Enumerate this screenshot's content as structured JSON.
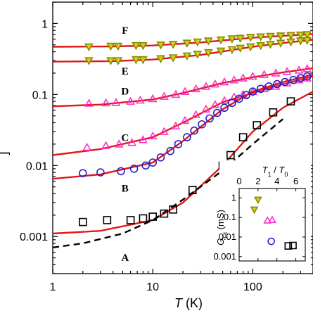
{
  "chart_data": [
    {
      "type": "scatter",
      "xlabel": "T (K)",
      "xscale": "log",
      "yscale": "log",
      "xlim": [
        1,
        400
      ],
      "ylim": [
        0.0003,
        2.0
      ],
      "x_ticks": [
        1,
        10,
        100
      ],
      "x_tick_labels": [
        "1",
        "10",
        "100"
      ],
      "y_ticks": [
        0.001,
        0.01,
        0.1,
        1
      ],
      "y_tick_labels": [
        "0.001",
        "0.01",
        "0.1",
        "1"
      ],
      "ylabel_partial": "]",
      "fit_color": "#e01818",
      "series": [
        {
          "name": "F",
          "label_pos": [
            2.0,
            0.72
          ],
          "marker": "triangle-down",
          "color": "#8a8a00",
          "fill": "#d0d020",
          "points": [
            [
              2.3,
              0.47
            ],
            [
              3.8,
              0.48
            ],
            [
              4.5,
              0.48
            ],
            [
              6.8,
              0.49
            ],
            [
              8.0,
              0.49
            ],
            [
              12,
              0.5
            ],
            [
              16,
              0.51
            ],
            [
              22,
              0.53
            ],
            [
              28,
              0.55
            ],
            [
              36,
              0.57
            ],
            [
              48,
              0.59
            ],
            [
              62,
              0.61
            ],
            [
              75,
              0.62
            ],
            [
              95,
              0.64
            ],
            [
              120,
              0.65
            ],
            [
              150,
              0.66
            ],
            [
              190,
              0.67
            ],
            [
              240,
              0.68
            ],
            [
              300,
              0.69
            ],
            [
              350,
              0.7
            ]
          ],
          "fit": [
            [
              1,
              0.47
            ],
            [
              4,
              0.475
            ],
            [
              10,
              0.49
            ],
            [
              30,
              0.54
            ],
            [
              100,
              0.63
            ],
            [
              200,
              0.67
            ],
            [
              400,
              0.71
            ]
          ]
        },
        {
          "name": "E",
          "label_pos": [
            2.0,
            0.19
          ],
          "marker": "triangle-down",
          "color": "#8a8a00",
          "fill": "#d0d020",
          "points": [
            [
              2.3,
              0.3
            ],
            [
              3.8,
              0.3
            ],
            [
              4.5,
              0.3
            ],
            [
              6.8,
              0.31
            ],
            [
              8.0,
              0.31
            ],
            [
              12,
              0.32
            ],
            [
              16,
              0.33
            ],
            [
              22,
              0.35
            ],
            [
              28,
              0.37
            ],
            [
              36,
              0.39
            ],
            [
              48,
              0.41
            ],
            [
              62,
              0.43
            ],
            [
              75,
              0.45
            ],
            [
              95,
              0.47
            ],
            [
              120,
              0.49
            ],
            [
              150,
              0.51
            ],
            [
              190,
              0.53
            ],
            [
              240,
              0.55
            ],
            [
              300,
              0.57
            ],
            [
              350,
              0.58
            ]
          ],
          "fit": [
            [
              1,
              0.29
            ],
            [
              4,
              0.295
            ],
            [
              10,
              0.31
            ],
            [
              30,
              0.36
            ],
            [
              100,
              0.47
            ],
            [
              200,
              0.53
            ],
            [
              400,
              0.59
            ]
          ]
        },
        {
          "name": "D",
          "label_pos": [
            2.0,
            0.1
          ],
          "marker": "triangle-up",
          "color": "#ff33cc",
          "fill": "none",
          "points": [
            [
              2.3,
              0.075
            ],
            [
              3.4,
              0.076
            ],
            [
              4.3,
              0.077
            ],
            [
              6.0,
              0.08
            ],
            [
              7.5,
              0.083
            ],
            [
              10,
              0.087
            ],
            [
              13,
              0.094
            ],
            [
              17,
              0.1
            ],
            [
              21,
              0.11
            ],
            [
              27,
              0.12
            ],
            [
              34,
              0.13
            ],
            [
              42,
              0.14
            ],
            [
              52,
              0.15
            ],
            [
              65,
              0.16
            ],
            [
              80,
              0.17
            ],
            [
              100,
              0.18
            ],
            [
              130,
              0.19
            ],
            [
              170,
              0.2
            ],
            [
              220,
              0.21
            ],
            [
              290,
              0.22
            ],
            [
              350,
              0.23
            ]
          ],
          "fit": [
            [
              1,
              0.068
            ],
            [
              3,
              0.072
            ],
            [
              10,
              0.085
            ],
            [
              20,
              0.105
            ],
            [
              50,
              0.145
            ],
            [
              100,
              0.175
            ],
            [
              200,
              0.205
            ],
            [
              400,
              0.235
            ]
          ]
        },
        {
          "name": "C",
          "label_pos": [
            2.0,
            0.022
          ],
          "marker": "triangle-up",
          "color": "#ff33cc",
          "fill": "none",
          "points": [
            [
              2.2,
              0.018
            ],
            [
              3.4,
              0.019
            ],
            [
              4.6,
              0.02
            ],
            [
              6.2,
              0.021
            ],
            [
              8.0,
              0.023
            ],
            [
              10,
              0.026
            ],
            [
              13,
              0.03
            ],
            [
              17,
              0.036
            ],
            [
              21,
              0.043
            ],
            [
              27,
              0.052
            ],
            [
              34,
              0.062
            ],
            [
              42,
              0.072
            ],
            [
              52,
              0.082
            ],
            [
              65,
              0.092
            ],
            [
              80,
              0.1
            ],
            [
              100,
              0.11
            ],
            [
              130,
              0.12
            ],
            [
              170,
              0.13
            ],
            [
              220,
              0.145
            ],
            [
              290,
              0.16
            ],
            [
              350,
              0.17
            ]
          ],
          "fit": [
            [
              1,
              0.014
            ],
            [
              3,
              0.017
            ],
            [
              10,
              0.025
            ],
            [
              20,
              0.04
            ],
            [
              50,
              0.078
            ],
            [
              100,
              0.105
            ],
            [
              200,
              0.14
            ],
            [
              400,
              0.18
            ]
          ]
        },
        {
          "name": "B",
          "label_pos": [
            2.0,
            0.0043
          ],
          "marker": "circle",
          "color": "#2222cc",
          "fill": "none",
          "points": [
            [
              2.0,
              0.0078
            ],
            [
              3.0,
              0.008
            ],
            [
              4.8,
              0.0083
            ],
            [
              6.5,
              0.009
            ],
            [
              8.5,
              0.01
            ],
            [
              10,
              0.011
            ],
            [
              12,
              0.013
            ],
            [
              15,
              0.016
            ],
            [
              18,
              0.02
            ],
            [
              22,
              0.025
            ],
            [
              26,
              0.031
            ],
            [
              31,
              0.038
            ],
            [
              37,
              0.046
            ],
            [
              44,
              0.055
            ],
            [
              52,
              0.065
            ],
            [
              62,
              0.076
            ],
            [
              73,
              0.087
            ],
            [
              86,
              0.098
            ],
            [
              100,
              0.11
            ],
            [
              120,
              0.12
            ],
            [
              145,
              0.13
            ],
            [
              175,
              0.14
            ],
            [
              210,
              0.15
            ],
            [
              255,
              0.16
            ],
            [
              300,
              0.17
            ],
            [
              350,
              0.18
            ]
          ],
          "fit": [
            [
              1,
              0.0065
            ],
            [
              3,
              0.0075
            ],
            [
              10,
              0.011
            ],
            [
              20,
              0.022
            ],
            [
              50,
              0.062
            ],
            [
              100,
              0.11
            ],
            [
              200,
              0.15
            ],
            [
              400,
              0.19
            ]
          ]
        },
        {
          "name": "A",
          "label_pos": [
            2.0,
            0.00045
          ],
          "marker": "square",
          "color": "#000000",
          "fill": "none",
          "points": [
            [
              2.0,
              0.0016
            ],
            [
              3.5,
              0.0017
            ],
            [
              6.0,
              0.0017
            ],
            [
              8.0,
              0.0018
            ],
            [
              10,
              0.0019
            ],
            [
              13,
              0.0021
            ],
            [
              16,
              0.0024
            ],
            [
              25,
              0.0045
            ],
            [
              50,
              0.01
            ],
            [
              60,
              0.014
            ],
            [
              80,
              0.025
            ],
            [
              110,
              0.037
            ],
            [
              160,
              0.056
            ],
            [
              240,
              0.08
            ]
          ],
          "fit": [
            [
              1,
              0.0011
            ],
            [
              3,
              0.0012
            ],
            [
              10,
              0.0017
            ],
            [
              20,
              0.003
            ],
            [
              50,
              0.01
            ],
            [
              100,
              0.03
            ],
            [
              200,
              0.065
            ],
            [
              400,
              0.11
            ]
          ],
          "model": [
            [
              1,
              0.0007
            ],
            [
              2,
              0.0008
            ],
            [
              5,
              0.0011
            ],
            [
              10,
              0.0017
            ],
            [
              20,
              0.0033
            ],
            [
              50,
              0.0085
            ],
            [
              100,
              0.02
            ],
            [
              200,
              0.045
            ]
          ]
        }
      ]
    },
    {
      "type": "scatter",
      "inset": true,
      "xlabel": "T1 / T0",
      "ylabel": "G (mS)",
      "xlabel_parts": {
        "a": "T",
        "a_sub": "1",
        "sep": " / ",
        "b": "T",
        "b_sub": "0"
      },
      "ylabel_parts": {
        "a": "G",
        "a_sub": "Fit",
        "rest": " (mS)"
      },
      "xlim": [
        0,
        7
      ],
      "ylim": [
        0.0006,
        3.0
      ],
      "yscale": "log",
      "x_ticks": [
        0,
        2,
        4,
        6
      ],
      "x_tick_labels": [
        "0",
        "2",
        "4",
        "6"
      ],
      "y_ticks": [
        0.001,
        0.01,
        0.1,
        1
      ],
      "y_tick_labels": [
        "0.001",
        "0.01",
        "0.1",
        "1"
      ],
      "points": [
        {
          "x": 2.0,
          "y": 0.8,
          "marker": "triangle-down",
          "color": "#8a8a00",
          "fill": "#d0d020"
        },
        {
          "x": 1.6,
          "y": 0.25,
          "marker": "triangle-down",
          "color": "#8a8a00",
          "fill": "#d0d020"
        },
        {
          "x": 3.0,
          "y": 0.07,
          "marker": "triangle-up",
          "color": "#ff33cc",
          "fill": "none"
        },
        {
          "x": 3.5,
          "y": 0.075,
          "marker": "triangle-up",
          "color": "#ff33cc",
          "fill": "none"
        },
        {
          "x": 3.4,
          "y": 0.006,
          "marker": "circle",
          "color": "#2222cc",
          "fill": "none"
        },
        {
          "x": 5.2,
          "y": 0.0035,
          "marker": "square",
          "color": "#000000",
          "fill": "none"
        },
        {
          "x": 5.7,
          "y": 0.0037,
          "marker": "square",
          "color": "#000000",
          "fill": "none"
        }
      ]
    }
  ]
}
